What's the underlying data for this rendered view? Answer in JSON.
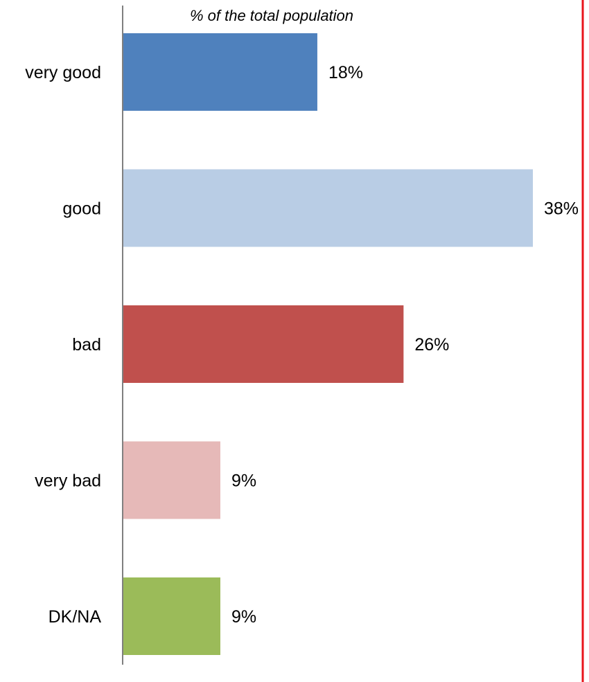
{
  "chart_data": {
    "type": "bar",
    "orientation": "horizontal",
    "title": "% of the total population",
    "categories": [
      "very good",
      "good",
      "bad",
      "very bad",
      "DK/NA"
    ],
    "values": [
      18,
      38,
      26,
      9,
      9
    ],
    "value_labels": [
      "18%",
      "38%",
      "26%",
      "9%",
      "9%"
    ],
    "unit": "%",
    "xlim": [
      0,
      40
    ],
    "grid": false,
    "legend": "none"
  },
  "colors": {
    "bars": [
      "#4f81bd",
      "#b9cde5",
      "#c0504d",
      "#e6b9b8",
      "#9bbb59"
    ],
    "axis": "#7f7f7f",
    "frame_right": "#e8141b"
  }
}
